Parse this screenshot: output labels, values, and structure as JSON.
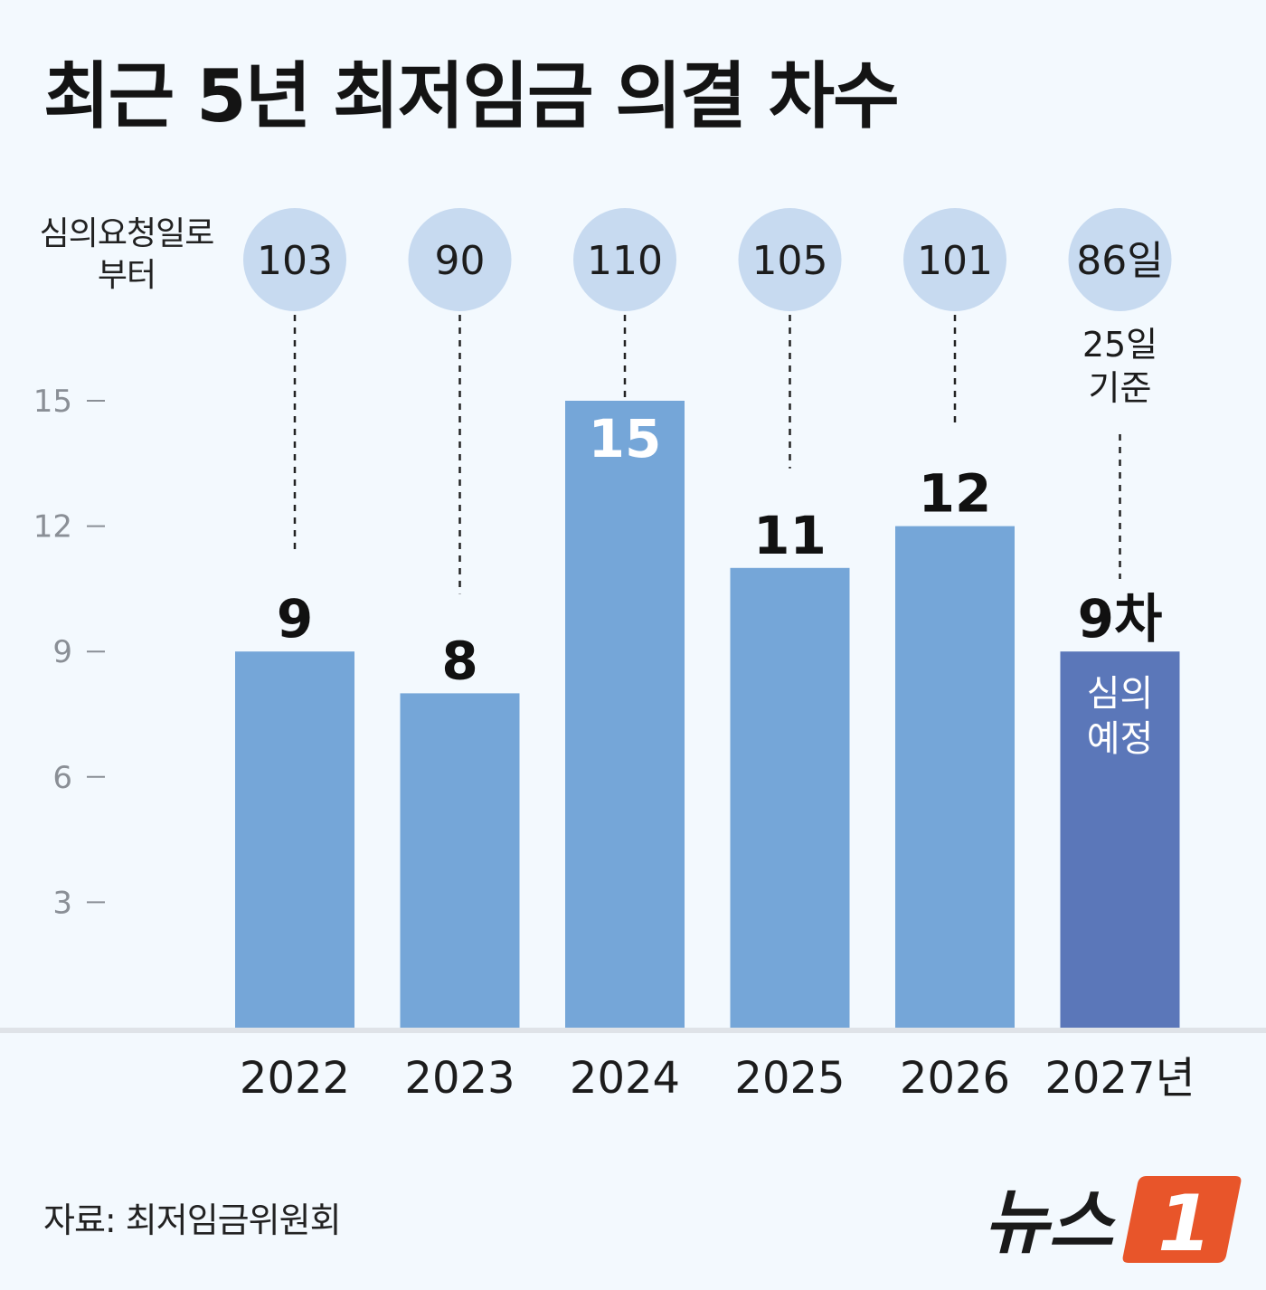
{
  "title": "최근 5년 최저임금 의결 차수",
  "days_label": [
    "심의요청일로",
    "부터"
  ],
  "source": "자료: 최저임금위원회",
  "logo": {
    "text": "뉴스",
    "mark": "1"
  },
  "colors": {
    "background": "#f3f9fe",
    "bar": "#75a6d8",
    "bar_highlight": "#5b77b9",
    "bubble": "#c7daf0",
    "logo_orange": "#e8552a"
  },
  "chart_data": {
    "type": "bar",
    "categories": [
      "2022",
      "2023",
      "2024",
      "2025",
      "2026",
      "2027년"
    ],
    "values": [
      9,
      8,
      15,
      11,
      12,
      9
    ],
    "value_labels": [
      "9",
      "8",
      "15",
      "11",
      "12",
      "9차"
    ],
    "days_from_request": [
      "103",
      "90",
      "110",
      "105",
      "101",
      "86일"
    ],
    "yticks": [
      3,
      6,
      9,
      12,
      15
    ],
    "ylim": [
      0,
      15
    ],
    "highlight_index": 5,
    "highlight_bar_text": [
      "심의",
      "예정"
    ],
    "annotation": [
      "25일",
      "기준"
    ],
    "grid": false,
    "legend": "none"
  }
}
